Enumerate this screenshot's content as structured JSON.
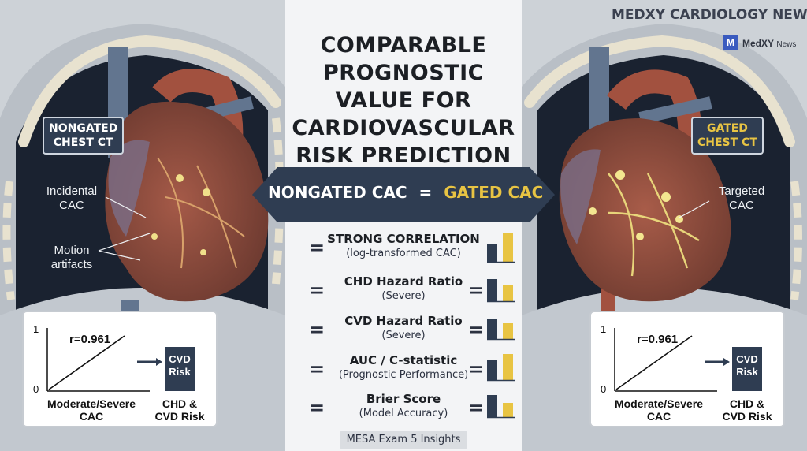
{
  "brand": {
    "title": "MEDXY CARDIOLOGY NEWS",
    "logo_letter": "M",
    "logo_name": "MedXY",
    "logo_suffix": "News",
    "accent": "#3a5bbf"
  },
  "title": [
    "COMPARABLE",
    "PROGNOSTIC",
    "VALUE FOR",
    "CARDIOVASCULAR",
    "RISK PREDICTION"
  ],
  "banner": {
    "left": "NONGATED CAC",
    "equals": "=",
    "right": "GATED CAC",
    "color": "#2f3d52",
    "highlight": "#e8c443"
  },
  "metrics": [
    {
      "main": "STRONG CORRELATION",
      "sub": "(log-transformed CAC)",
      "right_equals": ""
    },
    {
      "main": "CHD Hazard Ratio",
      "sub": "(Severe)",
      "right_equals": "="
    },
    {
      "main": "CVD Hazard Ratio",
      "sub": "(Severe)",
      "right_equals": "="
    },
    {
      "main": "AUC / C-statistic",
      "sub": "(Prognostic Performance)",
      "right_equals": "="
    },
    {
      "main": "Brier Score",
      "sub": "(Model Accuracy)",
      "right_equals": "="
    }
  ],
  "metric_equals": "=",
  "footer": "MESA Exam 5 Insights",
  "left": {
    "chip": [
      "NONGATED",
      "CHEST CT"
    ],
    "annotations": [
      [
        "Incidental",
        "CAC"
      ],
      [
        "Motion",
        "artifacts"
      ]
    ],
    "chart": {
      "r": "r=0.961",
      "y_top": "1",
      "y_bottom": "0",
      "xlabel": [
        "Moderate/Severe",
        "CAC"
      ],
      "risk": [
        "CVD",
        "Risk"
      ],
      "outcome": [
        "CHD &",
        "CVD Risk"
      ]
    }
  },
  "right": {
    "chip": [
      "GATED",
      "CHEST CT"
    ],
    "annotations": [
      [
        "Targeted",
        "CAC"
      ]
    ],
    "chart": {
      "r": "r=0.961",
      "y_top": "1",
      "y_bottom": "0",
      "xlabel": [
        "Moderate/Severe",
        "CAC"
      ],
      "risk": [
        "CVD",
        "Risk"
      ],
      "outcome": [
        "CHD &",
        "CVD Risk"
      ]
    }
  },
  "colors": {
    "navy": "#2f3d52",
    "gold": "#e8c443",
    "heart": "#8b4a3f",
    "vessel": "#62758f"
  }
}
